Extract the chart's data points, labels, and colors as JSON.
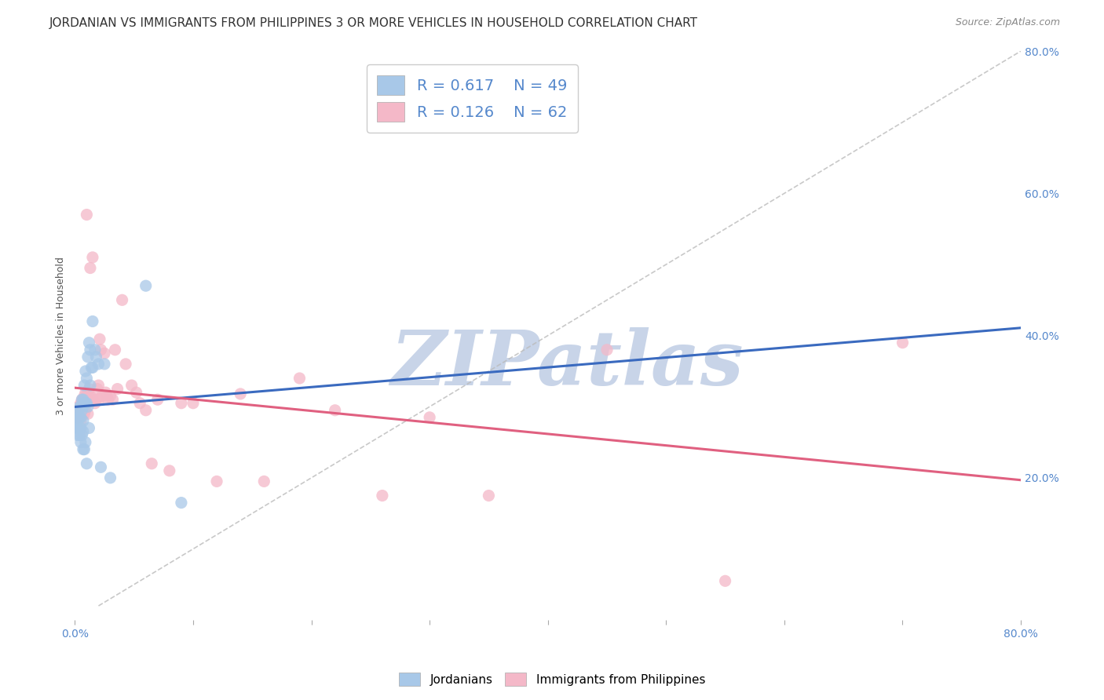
{
  "title": "JORDANIAN VS IMMIGRANTS FROM PHILIPPINES 3 OR MORE VEHICLES IN HOUSEHOLD CORRELATION CHART",
  "source": "Source: ZipAtlas.com",
  "ylabel": "3 or more Vehicles in Household",
  "watermark": "ZIPatlas",
  "xmin": 0.0,
  "xmax": 0.8,
  "ymin": 0.0,
  "ymax": 0.8,
  "jordanian_color": "#a8c8e8",
  "philippines_color": "#f4b8c8",
  "jordan_R": 0.617,
  "jordan_N": 49,
  "phil_R": 0.126,
  "phil_N": 62,
  "background_color": "#ffffff",
  "grid_color": "#cccccc",
  "title_fontsize": 11,
  "axis_label_fontsize": 9,
  "legend_fontsize": 13,
  "watermark_color": "#c8d4e8",
  "watermark_fontsize": 70,
  "reg_blue": "#3a6abf",
  "reg_pink": "#e06080",
  "diag_color": "#bbbbbb",
  "jordanian_x": [
    0.001,
    0.001,
    0.002,
    0.002,
    0.002,
    0.003,
    0.003,
    0.003,
    0.004,
    0.004,
    0.004,
    0.005,
    0.005,
    0.005,
    0.005,
    0.006,
    0.006,
    0.006,
    0.007,
    0.007,
    0.007,
    0.007,
    0.007,
    0.008,
    0.008,
    0.008,
    0.009,
    0.009,
    0.009,
    0.01,
    0.01,
    0.01,
    0.011,
    0.011,
    0.012,
    0.012,
    0.013,
    0.013,
    0.014,
    0.015,
    0.015,
    0.017,
    0.018,
    0.02,
    0.022,
    0.025,
    0.03,
    0.06,
    0.09
  ],
  "jordanian_y": [
    0.29,
    0.275,
    0.28,
    0.27,
    0.26,
    0.295,
    0.285,
    0.27,
    0.3,
    0.285,
    0.26,
    0.3,
    0.285,
    0.27,
    0.25,
    0.31,
    0.295,
    0.26,
    0.31,
    0.3,
    0.28,
    0.265,
    0.24,
    0.33,
    0.305,
    0.24,
    0.35,
    0.305,
    0.25,
    0.34,
    0.305,
    0.22,
    0.37,
    0.3,
    0.39,
    0.27,
    0.38,
    0.33,
    0.355,
    0.42,
    0.355,
    0.38,
    0.37,
    0.36,
    0.215,
    0.36,
    0.2,
    0.47,
    0.165
  ],
  "philippines_x": [
    0.001,
    0.002,
    0.003,
    0.004,
    0.005,
    0.005,
    0.006,
    0.006,
    0.007,
    0.007,
    0.008,
    0.008,
    0.009,
    0.009,
    0.01,
    0.01,
    0.011,
    0.011,
    0.012,
    0.013,
    0.013,
    0.014,
    0.015,
    0.015,
    0.017,
    0.018,
    0.019,
    0.02,
    0.02,
    0.021,
    0.022,
    0.023,
    0.025,
    0.026,
    0.027,
    0.028,
    0.03,
    0.032,
    0.034,
    0.036,
    0.04,
    0.043,
    0.048,
    0.052,
    0.055,
    0.06,
    0.065,
    0.07,
    0.08,
    0.09,
    0.1,
    0.12,
    0.14,
    0.16,
    0.19,
    0.22,
    0.26,
    0.3,
    0.35,
    0.45,
    0.55,
    0.7
  ],
  "philippines_y": [
    0.295,
    0.285,
    0.3,
    0.295,
    0.305,
    0.28,
    0.31,
    0.29,
    0.31,
    0.295,
    0.315,
    0.29,
    0.32,
    0.295,
    0.57,
    0.315,
    0.32,
    0.29,
    0.325,
    0.495,
    0.315,
    0.31,
    0.51,
    0.31,
    0.305,
    0.31,
    0.325,
    0.33,
    0.31,
    0.395,
    0.38,
    0.315,
    0.375,
    0.32,
    0.315,
    0.31,
    0.315,
    0.31,
    0.38,
    0.325,
    0.45,
    0.36,
    0.33,
    0.32,
    0.305,
    0.295,
    0.22,
    0.31,
    0.21,
    0.305,
    0.305,
    0.195,
    0.318,
    0.195,
    0.34,
    0.295,
    0.175,
    0.285,
    0.175,
    0.38,
    0.055,
    0.39
  ]
}
